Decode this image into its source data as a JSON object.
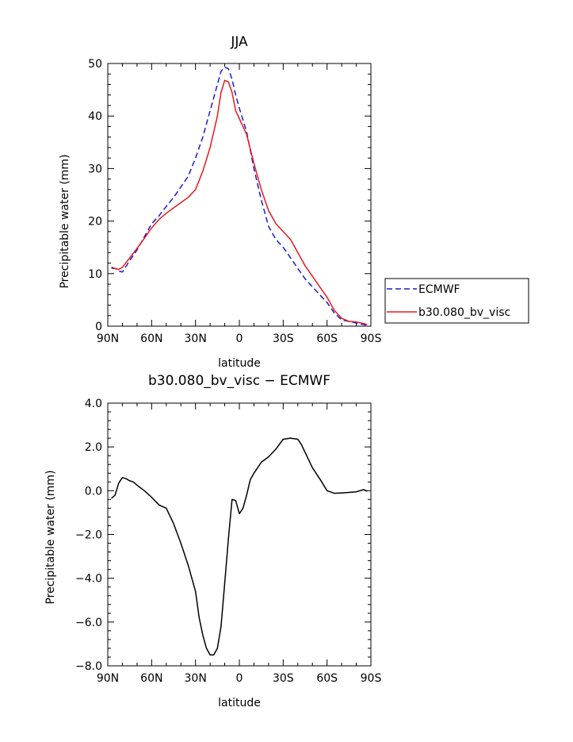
{
  "chart_data": [
    {
      "type": "line",
      "title": "JJA",
      "xlabel": "latitude",
      "ylabel": "Precipitable water (mm)",
      "xlim": [
        90,
        -90
      ],
      "ylim": [
        0,
        50
      ],
      "x_ticks": [
        {
          "value": 90,
          "label": "90N"
        },
        {
          "value": 60,
          "label": "60N"
        },
        {
          "value": 30,
          "label": "30N"
        },
        {
          "value": 0,
          "label": "0"
        },
        {
          "value": -30,
          "label": "30S"
        },
        {
          "value": -60,
          "label": "60S"
        },
        {
          "value": -90,
          "label": "90S"
        }
      ],
      "y_ticks": [
        {
          "value": 0,
          "label": "0"
        },
        {
          "value": 10,
          "label": "10"
        },
        {
          "value": 20,
          "label": "20"
        },
        {
          "value": 30,
          "label": "30"
        },
        {
          "value": 40,
          "label": "40"
        },
        {
          "value": 50,
          "label": "50"
        }
      ],
      "legend_position": "right",
      "series": [
        {
          "name": "ECMWF",
          "color": "#1a1ad6",
          "dash": "dashed",
          "x": [
            87.5,
            85,
            82.5,
            80,
            75,
            70,
            65,
            60,
            55,
            50,
            45,
            40,
            35,
            30,
            25,
            20,
            15,
            12.5,
            10,
            7.5,
            5,
            2.5,
            0,
            -5,
            -10,
            -15,
            -20,
            -25,
            -30,
            -35,
            -40,
            -45,
            -50,
            -55,
            -60,
            -65,
            -70,
            -75,
            -80,
            -85,
            -87.5
          ],
          "y": [
            11.2,
            11.0,
            10.5,
            10.3,
            12.5,
            14.5,
            17.0,
            19.5,
            21.0,
            22.8,
            24.5,
            26.5,
            28.5,
            32.0,
            36.0,
            41.0,
            46.0,
            48.5,
            49.3,
            49.0,
            47.0,
            44.0,
            41.5,
            37.0,
            30.0,
            24.0,
            19.0,
            16.5,
            15.0,
            13.0,
            11.0,
            9.0,
            7.5,
            6.0,
            4.5,
            2.5,
            1.2,
            0.9,
            0.6,
            0.3,
            0.2
          ]
        },
        {
          "name": "b30.080_bv_visc",
          "color": "#e8191b",
          "dash": "solid",
          "x": [
            87.5,
            85,
            82.5,
            80,
            75,
            70,
            65,
            60,
            55,
            50,
            45,
            40,
            35,
            30,
            25,
            20,
            15,
            12.5,
            10,
            7.5,
            5,
            2.5,
            0,
            -5,
            -10,
            -15,
            -20,
            -25,
            -30,
            -35,
            -40,
            -45,
            -50,
            -55,
            -60,
            -65,
            -70,
            -75,
            -80,
            -85,
            -87.5
          ],
          "y": [
            11.0,
            11.0,
            10.8,
            11.2,
            13.0,
            14.8,
            16.7,
            18.7,
            20.3,
            21.5,
            22.5,
            23.5,
            24.5,
            26.0,
            29.5,
            34.0,
            40.0,
            44.5,
            46.8,
            46.5,
            44.5,
            41.0,
            39.5,
            36.5,
            31.0,
            26.0,
            22.0,
            19.5,
            18.0,
            16.5,
            14.0,
            11.5,
            9.5,
            7.5,
            5.5,
            3.0,
            1.5,
            0.9,
            0.8,
            0.5,
            0.3
          ]
        }
      ]
    },
    {
      "type": "line",
      "title": "b30.080_bv_visc − ECMWF",
      "xlabel": "latitude",
      "ylabel": "Precipitable water (mm)",
      "xlim": [
        90,
        -90
      ],
      "ylim": [
        -8,
        4
      ],
      "x_ticks": [
        {
          "value": 90,
          "label": "90N"
        },
        {
          "value": 60,
          "label": "60N"
        },
        {
          "value": 30,
          "label": "30N"
        },
        {
          "value": 0,
          "label": "0"
        },
        {
          "value": -30,
          "label": "30S"
        },
        {
          "value": -60,
          "label": "60S"
        },
        {
          "value": -90,
          "label": "90S"
        }
      ],
      "y_ticks": [
        {
          "value": 4,
          "label": "4.0"
        },
        {
          "value": 2,
          "label": "2.0"
        },
        {
          "value": 0,
          "label": "0.0"
        },
        {
          "value": -2,
          "label": "−2.0"
        },
        {
          "value": -4,
          "label": "−4.0"
        },
        {
          "value": -6,
          "label": "−6.0"
        },
        {
          "value": -8,
          "label": "−8.0"
        }
      ],
      "series": [
        {
          "color": "#000000",
          "x": [
            87.5,
            85,
            82.5,
            80,
            77.5,
            75,
            72.5,
            70,
            65,
            60,
            55,
            50,
            45,
            40,
            35,
            30,
            27.5,
            25,
            22.5,
            20,
            17.5,
            15,
            12.5,
            10,
            7.5,
            5,
            2.5,
            0,
            -2.5,
            -5,
            -7.5,
            -10,
            -15,
            -20,
            -25,
            -30,
            -35,
            -40,
            -42.5,
            -45,
            -50,
            -55,
            -60,
            -65,
            -70,
            -75,
            -80,
            -85,
            -87.5
          ],
          "y": [
            -0.35,
            -0.2,
            0.35,
            0.6,
            0.55,
            0.45,
            0.4,
            0.25,
            0.0,
            -0.3,
            -0.65,
            -0.8,
            -1.5,
            -2.4,
            -3.4,
            -4.6,
            -5.8,
            -6.6,
            -7.2,
            -7.5,
            -7.5,
            -7.2,
            -6.2,
            -4.2,
            -2.2,
            -0.4,
            -0.45,
            -1.05,
            -0.8,
            -0.2,
            0.5,
            0.8,
            1.3,
            1.55,
            1.9,
            2.35,
            2.4,
            2.35,
            2.1,
            1.75,
            1.05,
            0.55,
            0.0,
            -0.12,
            -0.1,
            -0.08,
            -0.05,
            0.05,
            -0.02
          ]
        }
      ]
    }
  ]
}
